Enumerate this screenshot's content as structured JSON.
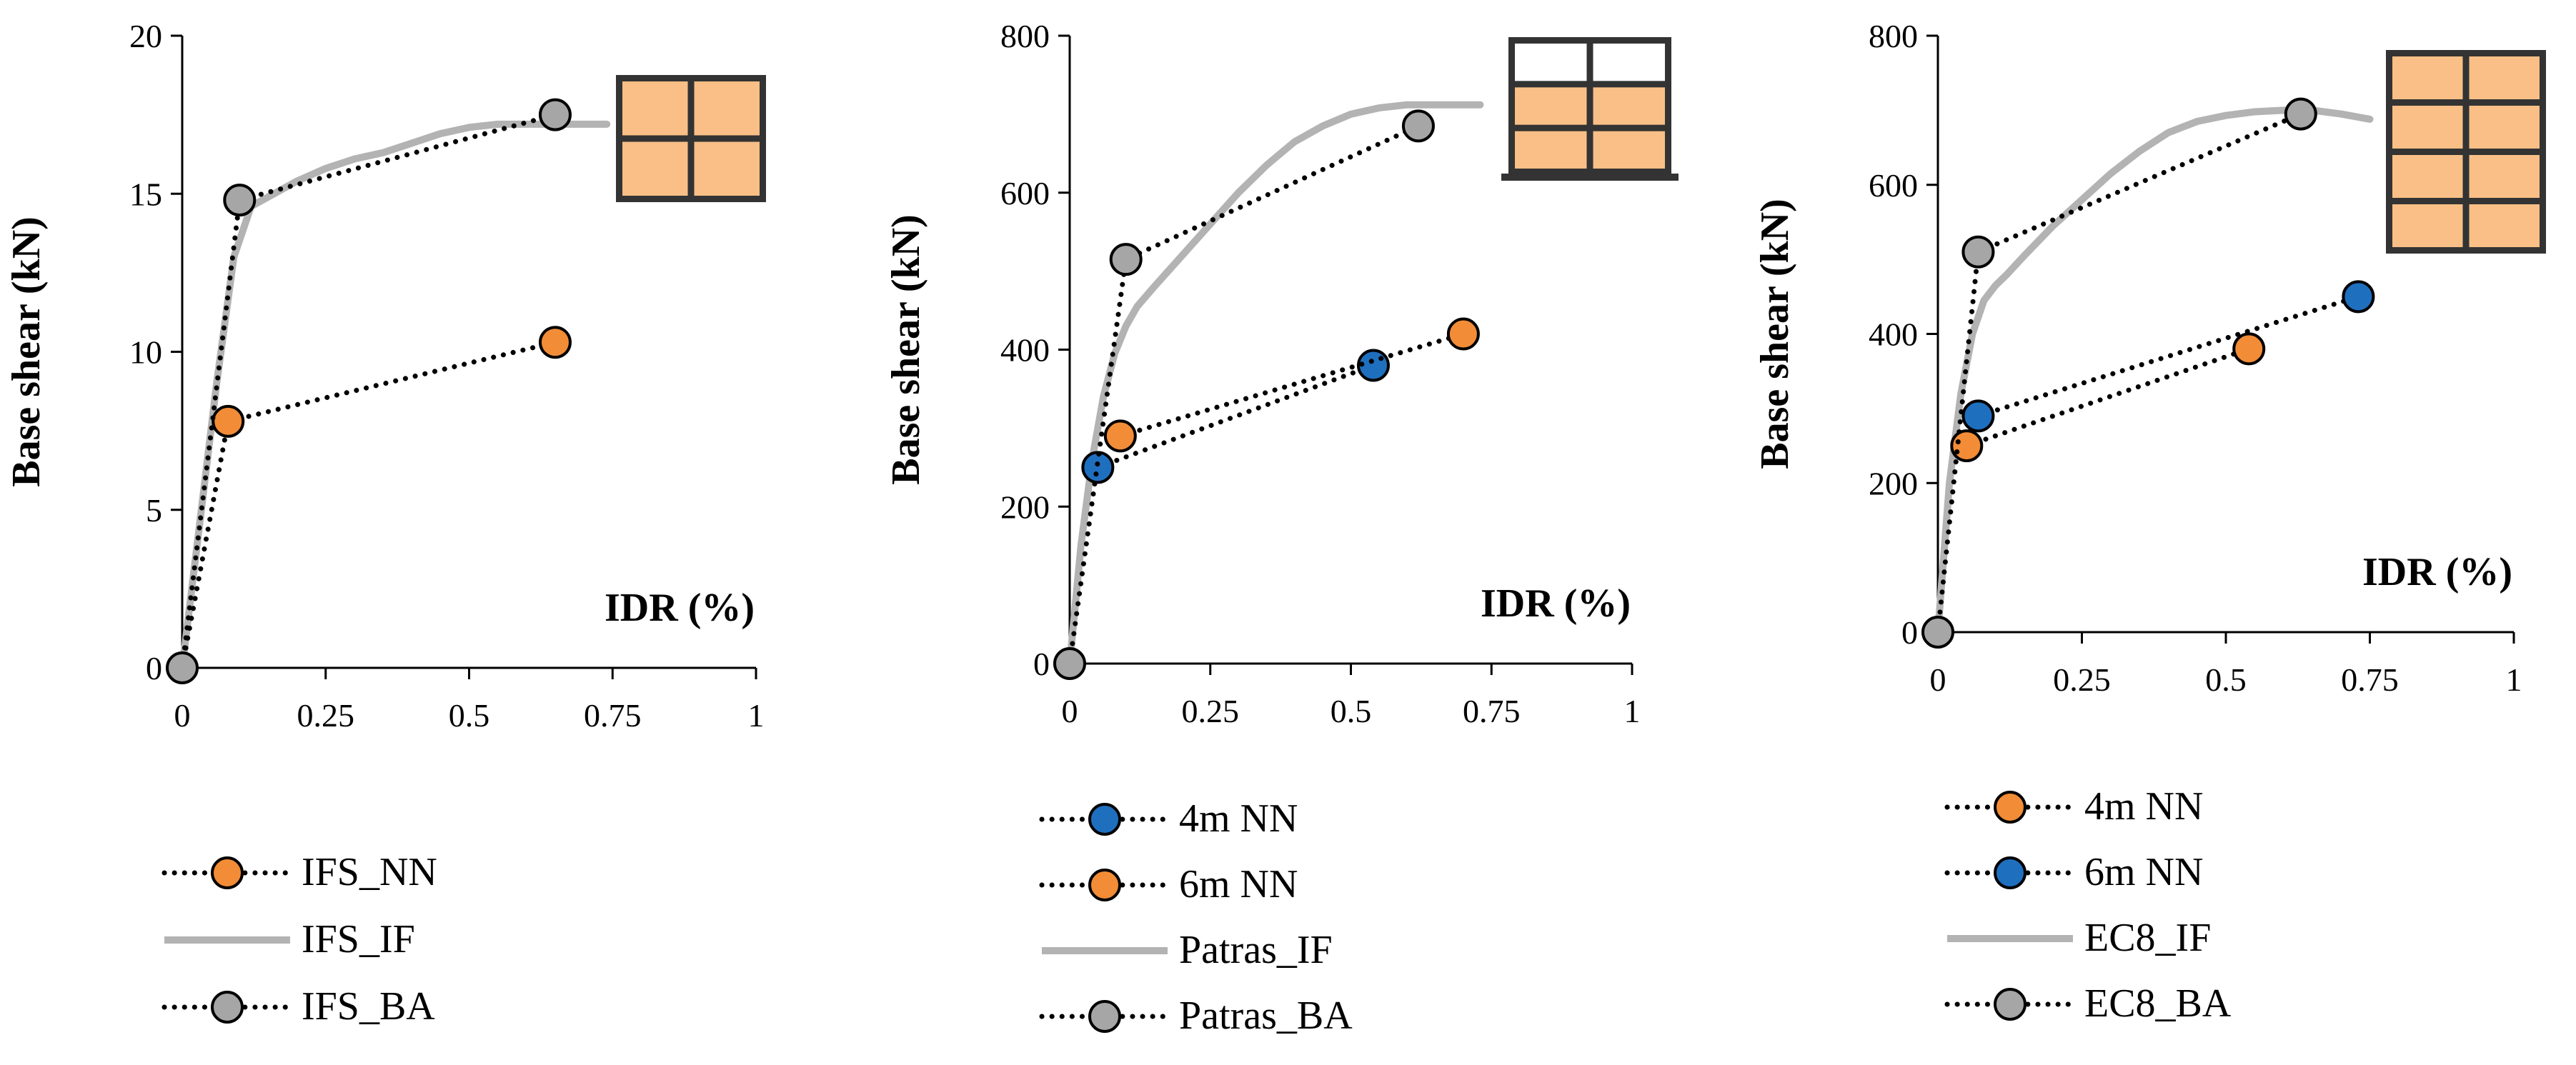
{
  "figure": {
    "background": "#ffffff"
  },
  "colors": {
    "orange": "#f28c36",
    "blue": "#1f6fbf",
    "gray": "#a6a6a6",
    "gray_line": "#b3b3b3",
    "brick": "#f9bf86",
    "frame": "#333333",
    "axis": "#000000"
  },
  "chart_data": [
    {
      "type": "line",
      "title": "",
      "xlabel": "IDR (%)",
      "ylabel": "Base shear (kN)",
      "xlim": [
        0,
        1
      ],
      "ylim": [
        0,
        20
      ],
      "xticks": [
        0,
        0.25,
        0.5,
        0.75,
        1
      ],
      "xtick_labels": [
        "0",
        "0.25",
        "0.5",
        "0.75",
        "1"
      ],
      "yticks": [
        0,
        5,
        10,
        15,
        20
      ],
      "ytick_labels": [
        "0",
        "5",
        "10",
        "15",
        "20"
      ],
      "icon": {
        "name": "infilled-frame-icon",
        "rows": [
          [
            1,
            1
          ],
          [
            1,
            1
          ]
        ]
      },
      "series": [
        {
          "name": "IFS_NN",
          "style": "dotted-marker",
          "color": "orange",
          "x": [
            0,
            0.08,
            0.65
          ],
          "y": [
            0,
            7.8,
            10.3
          ],
          "markers": [
            false,
            true,
            true
          ]
        },
        {
          "name": "IFS_IF",
          "style": "solid",
          "color": "gray_line",
          "x": [
            0,
            0.03,
            0.06,
            0.09,
            0.12,
            0.16,
            0.2,
            0.25,
            0.3,
            0.35,
            0.4,
            0.45,
            0.5,
            0.55,
            0.6,
            0.65,
            0.7,
            0.74
          ],
          "y": [
            0,
            4.5,
            9,
            13,
            14.6,
            15,
            15.4,
            15.8,
            16.1,
            16.3,
            16.6,
            16.9,
            17.1,
            17.2,
            17.2,
            17.2,
            17.2,
            17.2
          ]
        },
        {
          "name": "IFS_BA",
          "style": "dotted-marker",
          "color": "gray",
          "x": [
            0,
            0.1,
            0.65
          ],
          "y": [
            0,
            14.8,
            17.5
          ],
          "markers": [
            true,
            true,
            true
          ]
        }
      ],
      "legend": [
        "IFS_NN",
        "IFS_IF",
        "IFS_BA"
      ]
    },
    {
      "type": "line",
      "title": "",
      "xlabel": "IDR (%)",
      "ylabel": "Base shear (kN)",
      "xlim": [
        0,
        1
      ],
      "ylim": [
        0,
        800
      ],
      "xticks": [
        0,
        0.25,
        0.5,
        0.75,
        1
      ],
      "xtick_labels": [
        "0",
        "0.25",
        "0.5",
        "0.75",
        "1"
      ],
      "yticks": [
        0,
        200,
        400,
        600,
        800
      ],
      "ytick_labels": [
        "0",
        "200",
        "400",
        "600",
        "800"
      ],
      "icon": {
        "name": "partially-infilled-frame-icon",
        "rows": [
          [
            0,
            0
          ],
          [
            1,
            1
          ],
          [
            1,
            1
          ]
        ]
      },
      "series": [
        {
          "name": "4m NN",
          "style": "dotted-marker",
          "color": "blue",
          "x": [
            0.05,
            0.54
          ],
          "y": [
            250,
            380
          ],
          "markers": [
            true,
            true
          ]
        },
        {
          "name": "6m NN",
          "style": "dotted-marker",
          "color": "orange",
          "x": [
            0.09,
            0.7
          ],
          "y": [
            290,
            420
          ],
          "markers": [
            true,
            true
          ]
        },
        {
          "name": "Patras_IF",
          "style": "solid",
          "color": "gray_line",
          "x": [
            0,
            0.02,
            0.04,
            0.06,
            0.08,
            0.1,
            0.12,
            0.15,
            0.2,
            0.25,
            0.3,
            0.35,
            0.4,
            0.45,
            0.5,
            0.55,
            0.6,
            0.65,
            0.7,
            0.73
          ],
          "y": [
            0,
            150,
            260,
            340,
            395,
            430,
            455,
            480,
            520,
            560,
            600,
            635,
            665,
            685,
            700,
            708,
            712,
            712,
            712,
            712
          ]
        },
        {
          "name": "Patras_BA",
          "style": "dotted-marker",
          "color": "gray",
          "x": [
            0,
            0.1,
            0.62
          ],
          "y": [
            0,
            515,
            685
          ],
          "markers": [
            true,
            true,
            true
          ]
        }
      ],
      "legend": [
        "4m NN",
        "6m NN",
        "Patras_IF",
        "Patras_BA"
      ]
    },
    {
      "type": "line",
      "title": "",
      "xlabel": "IDR (%)",
      "ylabel": "Base shear (kN)",
      "xlim": [
        0,
        1
      ],
      "ylim": [
        0,
        800
      ],
      "xticks": [
        0,
        0.25,
        0.5,
        0.75,
        1
      ],
      "xtick_labels": [
        "0",
        "0.25",
        "0.5",
        "0.75",
        "1"
      ],
      "yticks": [
        0,
        200,
        400,
        600,
        800
      ],
      "ytick_labels": [
        "0",
        "200",
        "400",
        "600",
        "800"
      ],
      "icon": {
        "name": "fully-infilled-frame-icon",
        "rows": [
          [
            1,
            1
          ],
          [
            1,
            1
          ],
          [
            1,
            1
          ],
          [
            1,
            1
          ]
        ]
      },
      "series": [
        {
          "name": "4m NN",
          "style": "dotted-marker",
          "color": "orange",
          "x": [
            0.05,
            0.54
          ],
          "y": [
            250,
            380
          ],
          "markers": [
            true,
            true
          ]
        },
        {
          "name": "6m NN",
          "style": "dotted-marker",
          "color": "blue",
          "x": [
            0.07,
            0.73
          ],
          "y": [
            290,
            450
          ],
          "markers": [
            true,
            true
          ]
        },
        {
          "name": "EC8_IF",
          "style": "solid",
          "color": "gray_line",
          "x": [
            0,
            0.02,
            0.04,
            0.06,
            0.08,
            0.1,
            0.12,
            0.15,
            0.2,
            0.25,
            0.3,
            0.35,
            0.4,
            0.45,
            0.5,
            0.55,
            0.6,
            0.65,
            0.7,
            0.75
          ],
          "y": [
            0,
            200,
            320,
            400,
            445,
            465,
            480,
            505,
            545,
            580,
            615,
            645,
            670,
            685,
            693,
            698,
            700,
            700,
            695,
            688
          ]
        },
        {
          "name": "EC8_BA",
          "style": "dotted-marker",
          "color": "gray",
          "x": [
            0,
            0.07,
            0.63
          ],
          "y": [
            0,
            510,
            695
          ],
          "markers": [
            true,
            true,
            true
          ]
        }
      ],
      "legend": [
        "4m NN",
        "6m NN",
        "EC8_IF",
        "EC8_BA"
      ]
    }
  ]
}
